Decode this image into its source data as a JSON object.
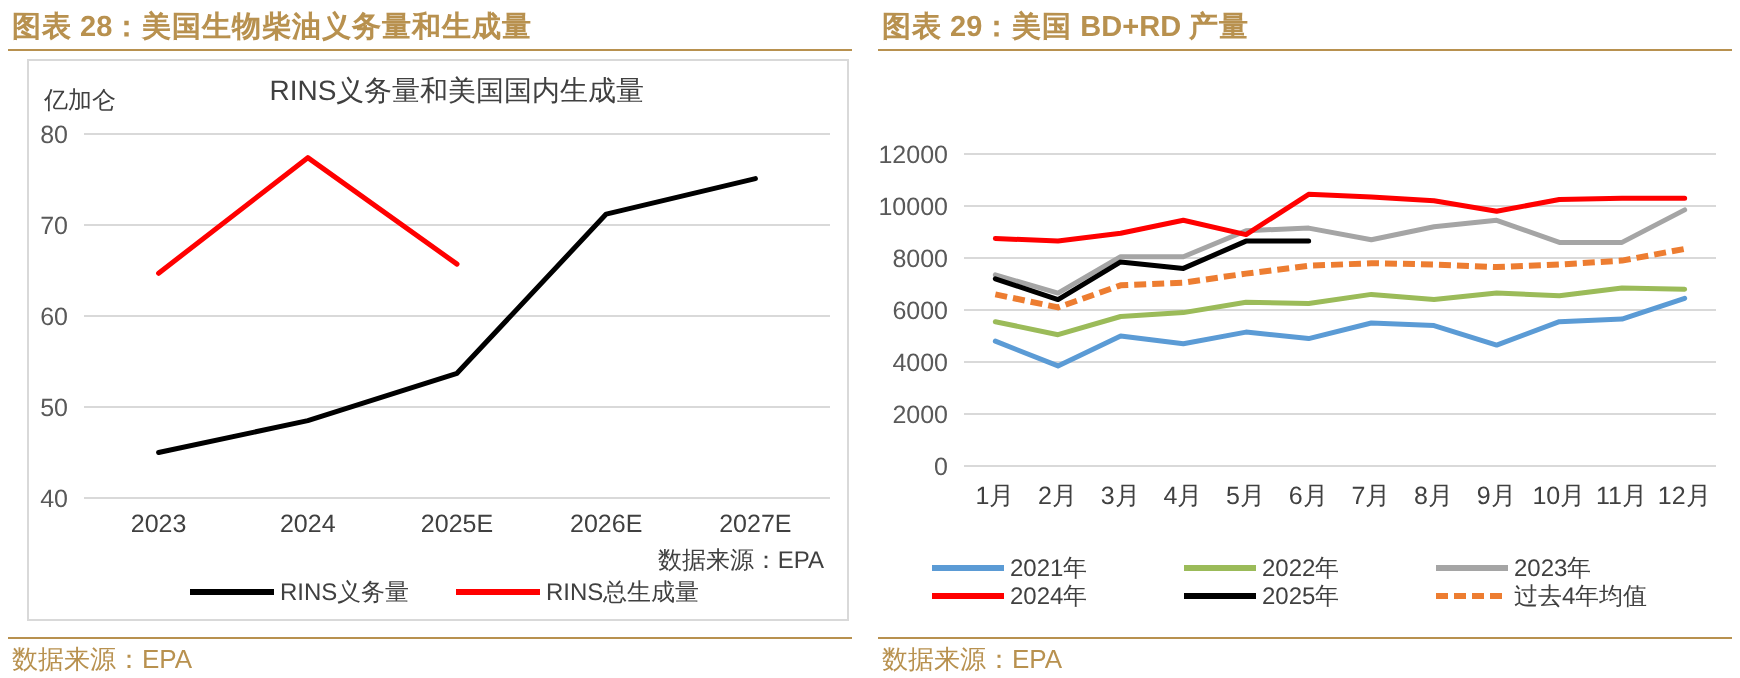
{
  "chart_data": [
    {
      "type": "line",
      "title": "图表 28：美国生物柴油义务量和生成量",
      "subtitle": "RINS义务量和美国国内生成量",
      "ylabel": "亿加仑",
      "categories": [
        "2023",
        "2024",
        "2025E",
        "2026E",
        "2027E"
      ],
      "series": [
        {
          "name": "RINS义务量",
          "color": "#000000",
          "values": [
            45.0,
            48.5,
            53.7,
            71.2,
            75.1
          ]
        },
        {
          "name": "RINS总生成量",
          "color": "#ff0000",
          "values": [
            64.7,
            77.4,
            65.7,
            null,
            null
          ]
        }
      ],
      "ylim": [
        40,
        80
      ],
      "yticks": [
        40,
        50,
        60,
        70,
        80
      ],
      "grid": "y",
      "legend": "bottom",
      "annotations": [
        "数据来源：EPA",
        "数据来源：EPA"
      ]
    },
    {
      "type": "line",
      "title": "图表 29：美国 BD+RD 产量",
      "categories": [
        "1月",
        "2月",
        "3月",
        "4月",
        "5月",
        "6月",
        "7月",
        "8月",
        "9月",
        "10月",
        "11月",
        "12月"
      ],
      "series": [
        {
          "name": "2021年",
          "color": "#5b9bd5",
          "values": [
            4800,
            3850,
            5000,
            4700,
            5150,
            4900,
            5500,
            5400,
            4650,
            5550,
            5650,
            6450
          ]
        },
        {
          "name": "2022年",
          "color": "#9bbb59",
          "values": [
            5550,
            5050,
            5750,
            5900,
            6300,
            6250,
            6600,
            6400,
            6650,
            6550,
            6850,
            6800
          ]
        },
        {
          "name": "2023年",
          "color": "#a5a5a5",
          "values": [
            7350,
            6650,
            8050,
            8050,
            9050,
            9150,
            8700,
            9200,
            9450,
            8600,
            8600,
            9850
          ]
        },
        {
          "name": "2024年",
          "color": "#ff0000",
          "values": [
            8750,
            8650,
            8950,
            9450,
            8900,
            10450,
            10350,
            10200,
            9800,
            10250,
            10300,
            10300
          ]
        },
        {
          "name": "2025年",
          "color": "#000000",
          "values": [
            7200,
            6400,
            7850,
            7600,
            8650,
            8650,
            null,
            null,
            null,
            null,
            null,
            null
          ]
        },
        {
          "name": "过去4年均值",
          "color": "#ed7d31",
          "line_style": "dashed",
          "values": [
            6600,
            6100,
            6950,
            7050,
            7400,
            7700,
            7800,
            7750,
            7650,
            7750,
            7900,
            8350
          ]
        }
      ],
      "ylim": [
        0,
        12000
      ],
      "yticks": [
        0,
        2000,
        4000,
        6000,
        8000,
        10000,
        12000
      ],
      "grid": "y",
      "legend": "bottom",
      "annotations": [
        "数据来源：EPA"
      ]
    }
  ]
}
